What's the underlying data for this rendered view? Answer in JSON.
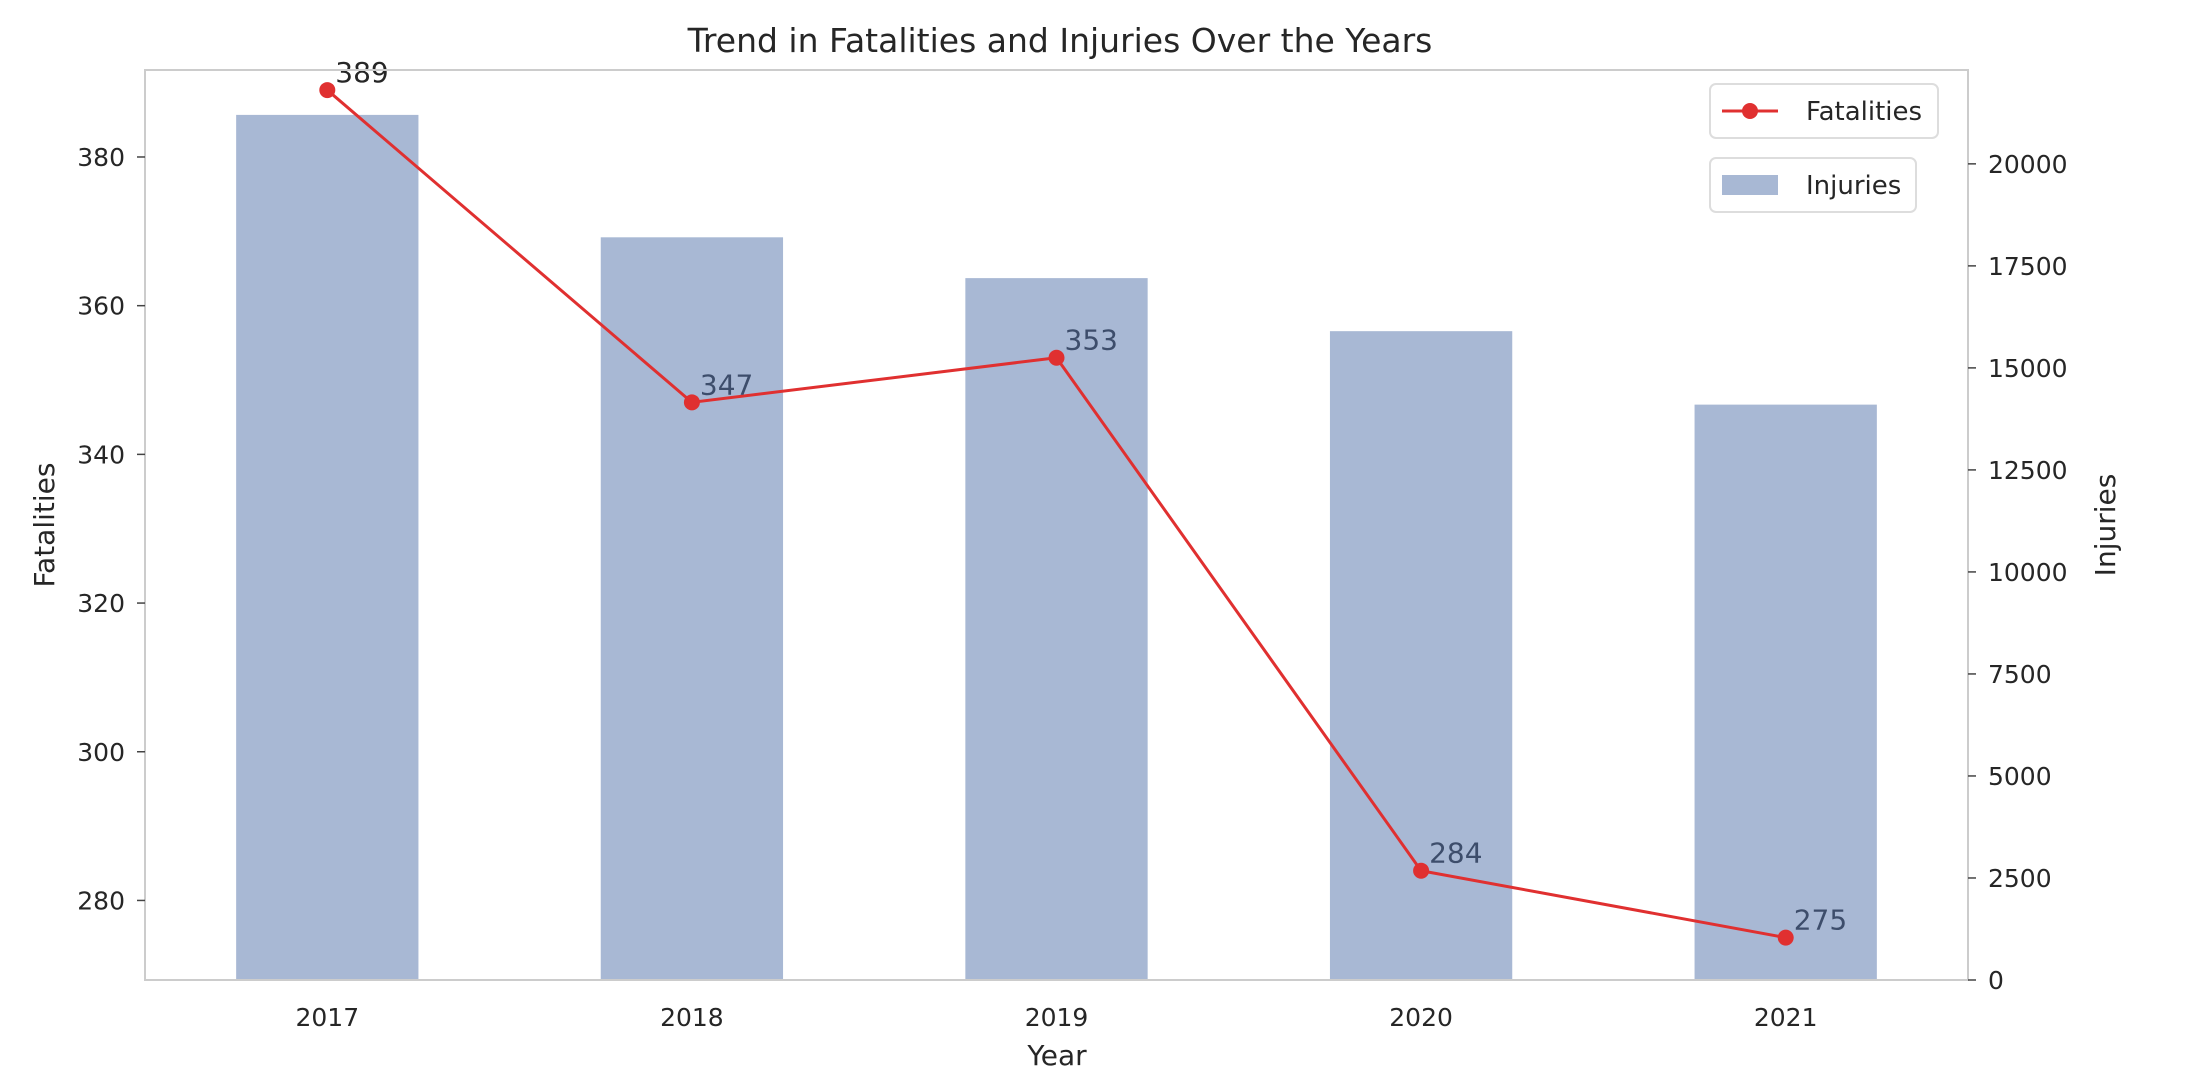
{
  "chart_data": {
    "type": "bar",
    "title": "Trend in Fatalities and Injuries Over the Years",
    "xlabel": "Year",
    "ylabel": "Fatalities",
    "y2label": "Injuries",
    "categories": [
      "2017",
      "2018",
      "2019",
      "2020",
      "2021"
    ],
    "series": [
      {
        "name": "Injuries",
        "type": "bar",
        "axis": "right",
        "values": [
          21200,
          18200,
          17200,
          15900,
          14100
        ],
        "color": "#a8b8d4"
      },
      {
        "name": "Fatalities",
        "type": "line",
        "axis": "left",
        "values": [
          389,
          347,
          353,
          284,
          275
        ],
        "color": "#e03030",
        "data_labels": [
          "389",
          "347",
          "353",
          "284",
          "275"
        ]
      }
    ],
    "ylim": [
      269.3,
      391.7
    ],
    "y_ticks": [
      280,
      300,
      320,
      340,
      360,
      380
    ],
    "y2lim": [
      0,
      22300
    ],
    "y2_ticks": [
      0,
      2500,
      5000,
      7500,
      10000,
      12500,
      15000,
      17500,
      20000
    ],
    "grid": false,
    "legend_placement": "top-right"
  }
}
